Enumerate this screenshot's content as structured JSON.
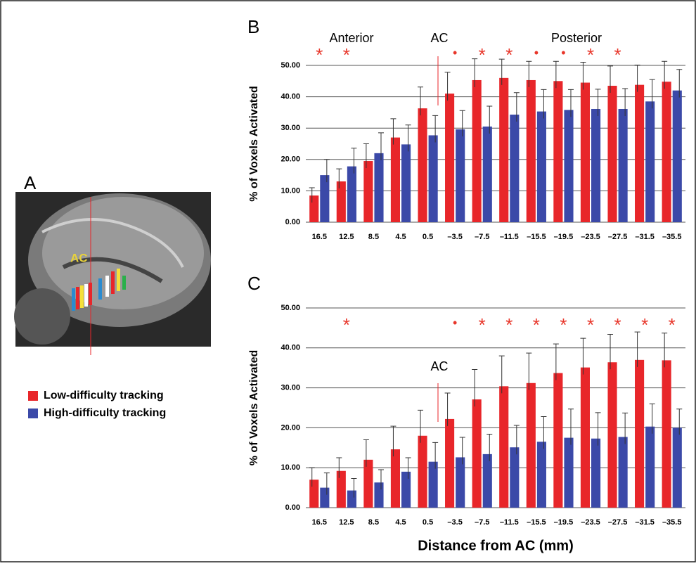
{
  "panel_a": {
    "label": "A",
    "image_label": "AC"
  },
  "chart_data": [
    {
      "type": "bar",
      "panel_label": "B",
      "ylabel": "% of Voxels Activated",
      "region_labels": [
        "Anterior",
        "AC",
        "Posterior"
      ],
      "categories": [
        "16.5",
        "12.5",
        "8.5",
        "4.5",
        "0.5",
        "–3.5",
        "–7.5",
        "–11.5",
        "–15.5",
        "–19.5",
        "–23.5",
        "–27.5",
        "–31.5",
        "–35.5"
      ],
      "series": [
        {
          "name": "Low-difficulty tracking",
          "color": "#e8262a",
          "values": [
            8.5,
            13,
            19.5,
            27,
            36.3,
            41,
            45.3,
            46,
            45.3,
            45,
            44.5,
            43.5,
            43.8,
            44.8
          ],
          "errors": [
            2.5,
            4,
            5.5,
            6,
            6.8,
            6.8,
            6.8,
            6,
            6,
            6.3,
            6.5,
            6.3,
            6.3,
            6.5
          ]
        },
        {
          "name": "High-difficulty tracking",
          "color": "#3b49a8",
          "values": [
            15,
            17.8,
            22,
            24.8,
            27.7,
            29.6,
            30.5,
            34.3,
            35.3,
            35.8,
            36.1,
            36.1,
            38.5,
            42
          ],
          "errors": [
            5,
            5.8,
            6.5,
            6.2,
            6.3,
            6,
            6.5,
            7,
            7,
            6.5,
            6.3,
            6.5,
            7,
            6.7
          ]
        }
      ],
      "markers": [
        "*",
        "*",
        null,
        null,
        null,
        "•",
        "*",
        "*",
        "•",
        "•",
        "*",
        "*",
        null,
        null
      ],
      "ylim": [
        0,
        50
      ],
      "yticks": [
        {
          "value": 0,
          "label": "0.00"
        },
        {
          "value": 10,
          "label": "10.00"
        },
        {
          "value": 20,
          "label": "20.00"
        },
        {
          "value": 30,
          "label": "30.00"
        },
        {
          "value": 40,
          "label": "40.00"
        },
        {
          "value": 50,
          "label": "50.00"
        }
      ],
      "grid": true
    },
    {
      "type": "bar",
      "panel_label": "C",
      "ylabel": "% of Voxels Activated",
      "xlabel": "Distance from AC (mm)",
      "region_labels": [
        "AC"
      ],
      "categories": [
        "16.5",
        "12.5",
        "8.5",
        "4.5",
        "0.5",
        "–3.5",
        "–7.5",
        "–11.5",
        "–15.5",
        "–19.5",
        "–23.5",
        "–27.5",
        "–31.5",
        "–35.5"
      ],
      "series": [
        {
          "color": "#e8262a",
          "values": [
            7,
            9.2,
            12,
            14.6,
            18,
            22.2,
            27.1,
            30.4,
            31.2,
            33.7,
            35.1,
            36.4,
            37,
            36.9
          ],
          "errors": [
            3,
            3.3,
            5,
            5.8,
            6.4,
            6.5,
            7.5,
            7.6,
            7.5,
            7.3,
            7.3,
            7,
            7,
            6.8
          ]
        },
        {
          "color": "#3b49a8",
          "values": [
            5,
            4.3,
            6.3,
            9,
            11.5,
            12.6,
            13.4,
            15.1,
            16.5,
            17.5,
            17.3,
            17.7,
            20.3,
            20
          ],
          "errors": [
            3.7,
            3,
            3.2,
            3.5,
            4.8,
            5,
            5,
            5.5,
            6.3,
            7.2,
            6.5,
            6,
            5.7,
            4.7
          ]
        }
      ],
      "markers": [
        null,
        "*",
        null,
        null,
        null,
        "•",
        "*",
        "*",
        "*",
        "*",
        "*",
        "*",
        "*",
        "*"
      ],
      "ylim": [
        0,
        50
      ],
      "yticks": [
        {
          "value": 0,
          "label": "0.00"
        },
        {
          "value": 10,
          "label": "10.00"
        },
        {
          "value": 20,
          "label": "20.00"
        },
        {
          "value": 30,
          "label": "30.00"
        },
        {
          "value": 40,
          "label": "40.00"
        },
        {
          "value": 50,
          "label": "50.00"
        }
      ],
      "grid": true
    }
  ]
}
